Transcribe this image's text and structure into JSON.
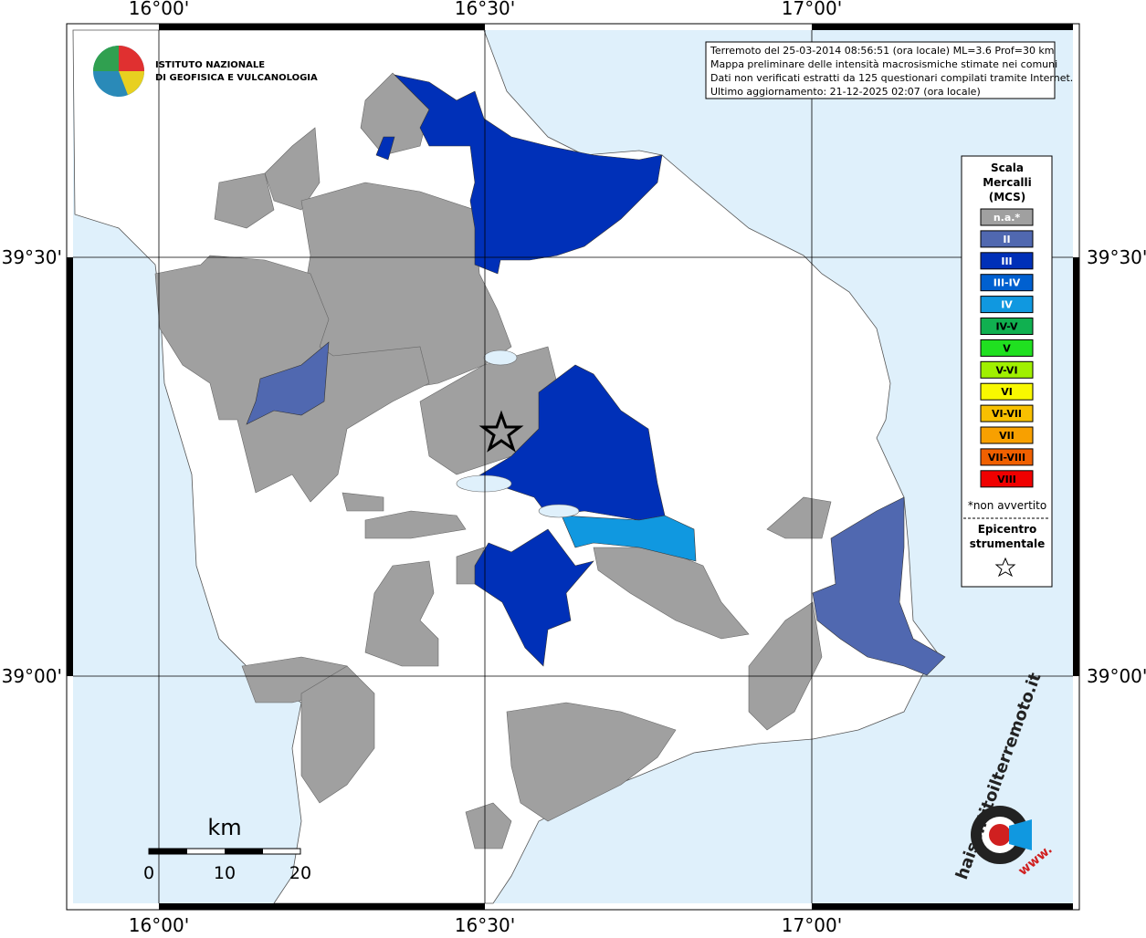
{
  "header": {
    "institute": [
      "ISTITUTO NAZIONALE",
      "DI GEOFISICA E VULCANOLOGIA"
    ]
  },
  "info": [
    "Terremoto del 25-03-2014 08:56:51 (ora locale) ML=3.6 Prof=30 km",
    "Mappa preliminare delle intensità macrosismiche stimate nei comuni",
    "Dati non verificati estratti da 125 questionari compilati tramite Internet.",
    "Ultimo aggiornamento: 21-12-2025 02:07 (ora locale)"
  ],
  "graticule": {
    "lon": [
      "16°00'",
      "16°30'",
      "17°00'"
    ],
    "lat": [
      "39°30'",
      "39°00'"
    ]
  },
  "legend": {
    "title": [
      "Scala",
      "Mercalli",
      "(MCS)"
    ],
    "classes": [
      {
        "label": "n.a.*",
        "color": "#a0a0a0"
      },
      {
        "label": "II",
        "color": "#5068b0"
      },
      {
        "label": "III",
        "color": "#0030b8"
      },
      {
        "label": "III-IV",
        "color": "#0060d0"
      },
      {
        "label": "IV",
        "color": "#1098e0"
      },
      {
        "label": "IV-V",
        "color": "#10b050"
      },
      {
        "label": "V",
        "color": "#20e020"
      },
      {
        "label": "V-VI",
        "color": "#a0f000"
      },
      {
        "label": "VI",
        "color": "#f8f800"
      },
      {
        "label": "VI-VII",
        "color": "#f8c000"
      },
      {
        "label": "VII",
        "color": "#f8a000"
      },
      {
        "label": "VII-VIII",
        "color": "#f06000"
      },
      {
        "label": "VIII",
        "color": "#f00000"
      }
    ],
    "note": "*non avvertito",
    "epicenter": [
      "Epicentro",
      "strumentale"
    ]
  },
  "scale_bar": {
    "unit": "km",
    "ticks": [
      "0",
      "10",
      "20"
    ]
  },
  "watermark": {
    "site": "haisentitoilterremoto.it",
    "prefix": "www."
  }
}
